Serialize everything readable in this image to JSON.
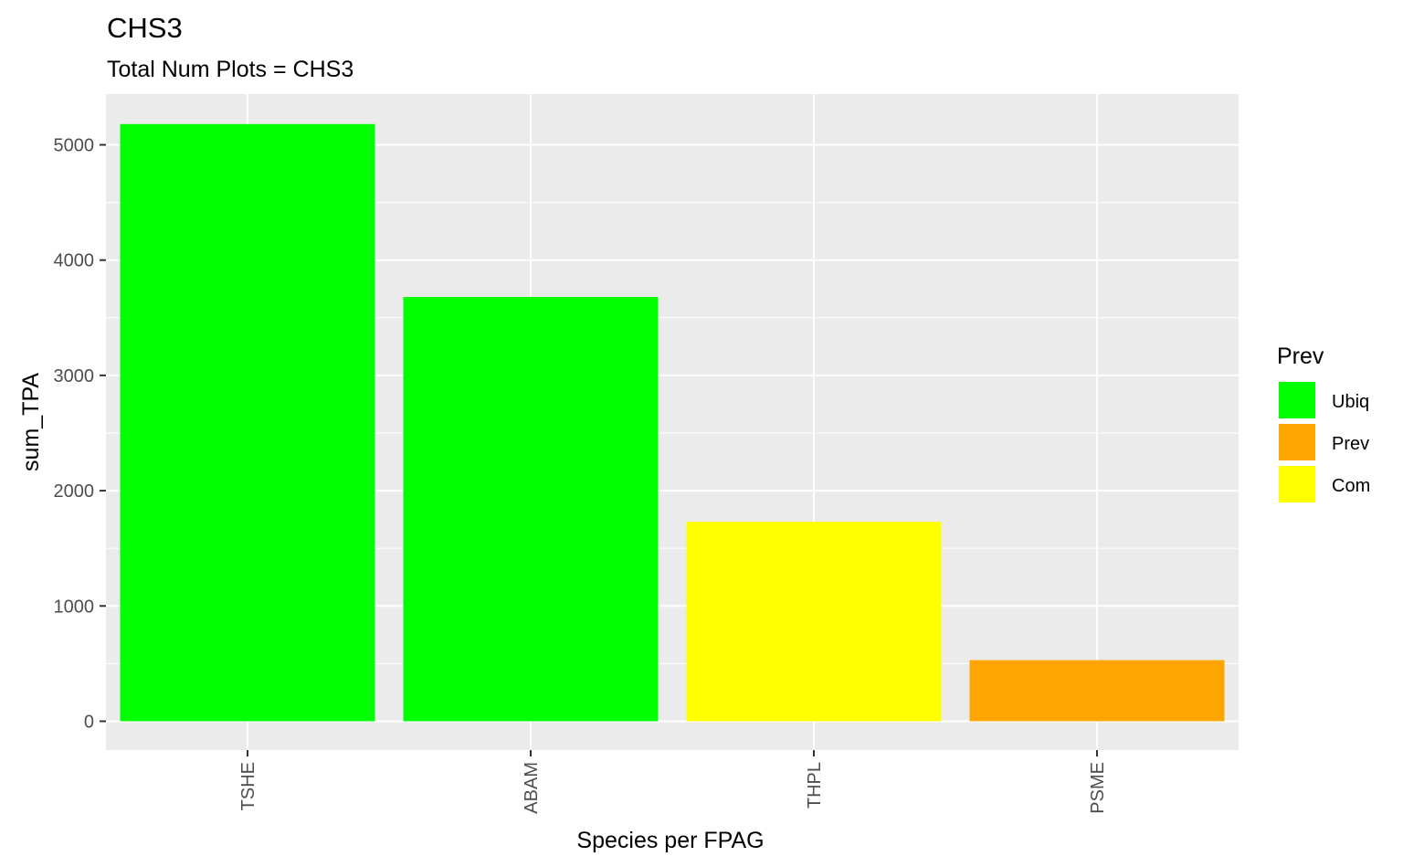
{
  "chart_data": {
    "type": "bar",
    "title": "CHS3",
    "subtitle": "Total Num Plots = CHS3",
    "xlabel": "Species per FPAG",
    "ylabel": "sum_TPA",
    "categories": [
      "TSHE",
      "ABAM",
      "THPL",
      "PSME"
    ],
    "values": [
      5180,
      3680,
      1730,
      530
    ],
    "fill_groups": [
      "Ubiq",
      "Ubiq",
      "Com",
      "Prev"
    ],
    "ylim": [
      -250,
      5440
    ],
    "yticks": [
      0,
      1000,
      2000,
      3000,
      4000,
      5000
    ],
    "ytick_labels": [
      "0",
      "1000",
      "2000",
      "3000",
      "4000",
      "5000"
    ],
    "grid": true,
    "x_tick_rotation": "vertical",
    "legend": {
      "title": "Prev",
      "position": "right",
      "entries": [
        {
          "label": "Ubiq",
          "color": "#00ff00"
        },
        {
          "label": "Prev",
          "color": "#ffa500"
        },
        {
          "label": "Com",
          "color": "#ffff00"
        }
      ]
    },
    "panel_background": "#ebebeb",
    "grid_color": "#ffffff"
  }
}
